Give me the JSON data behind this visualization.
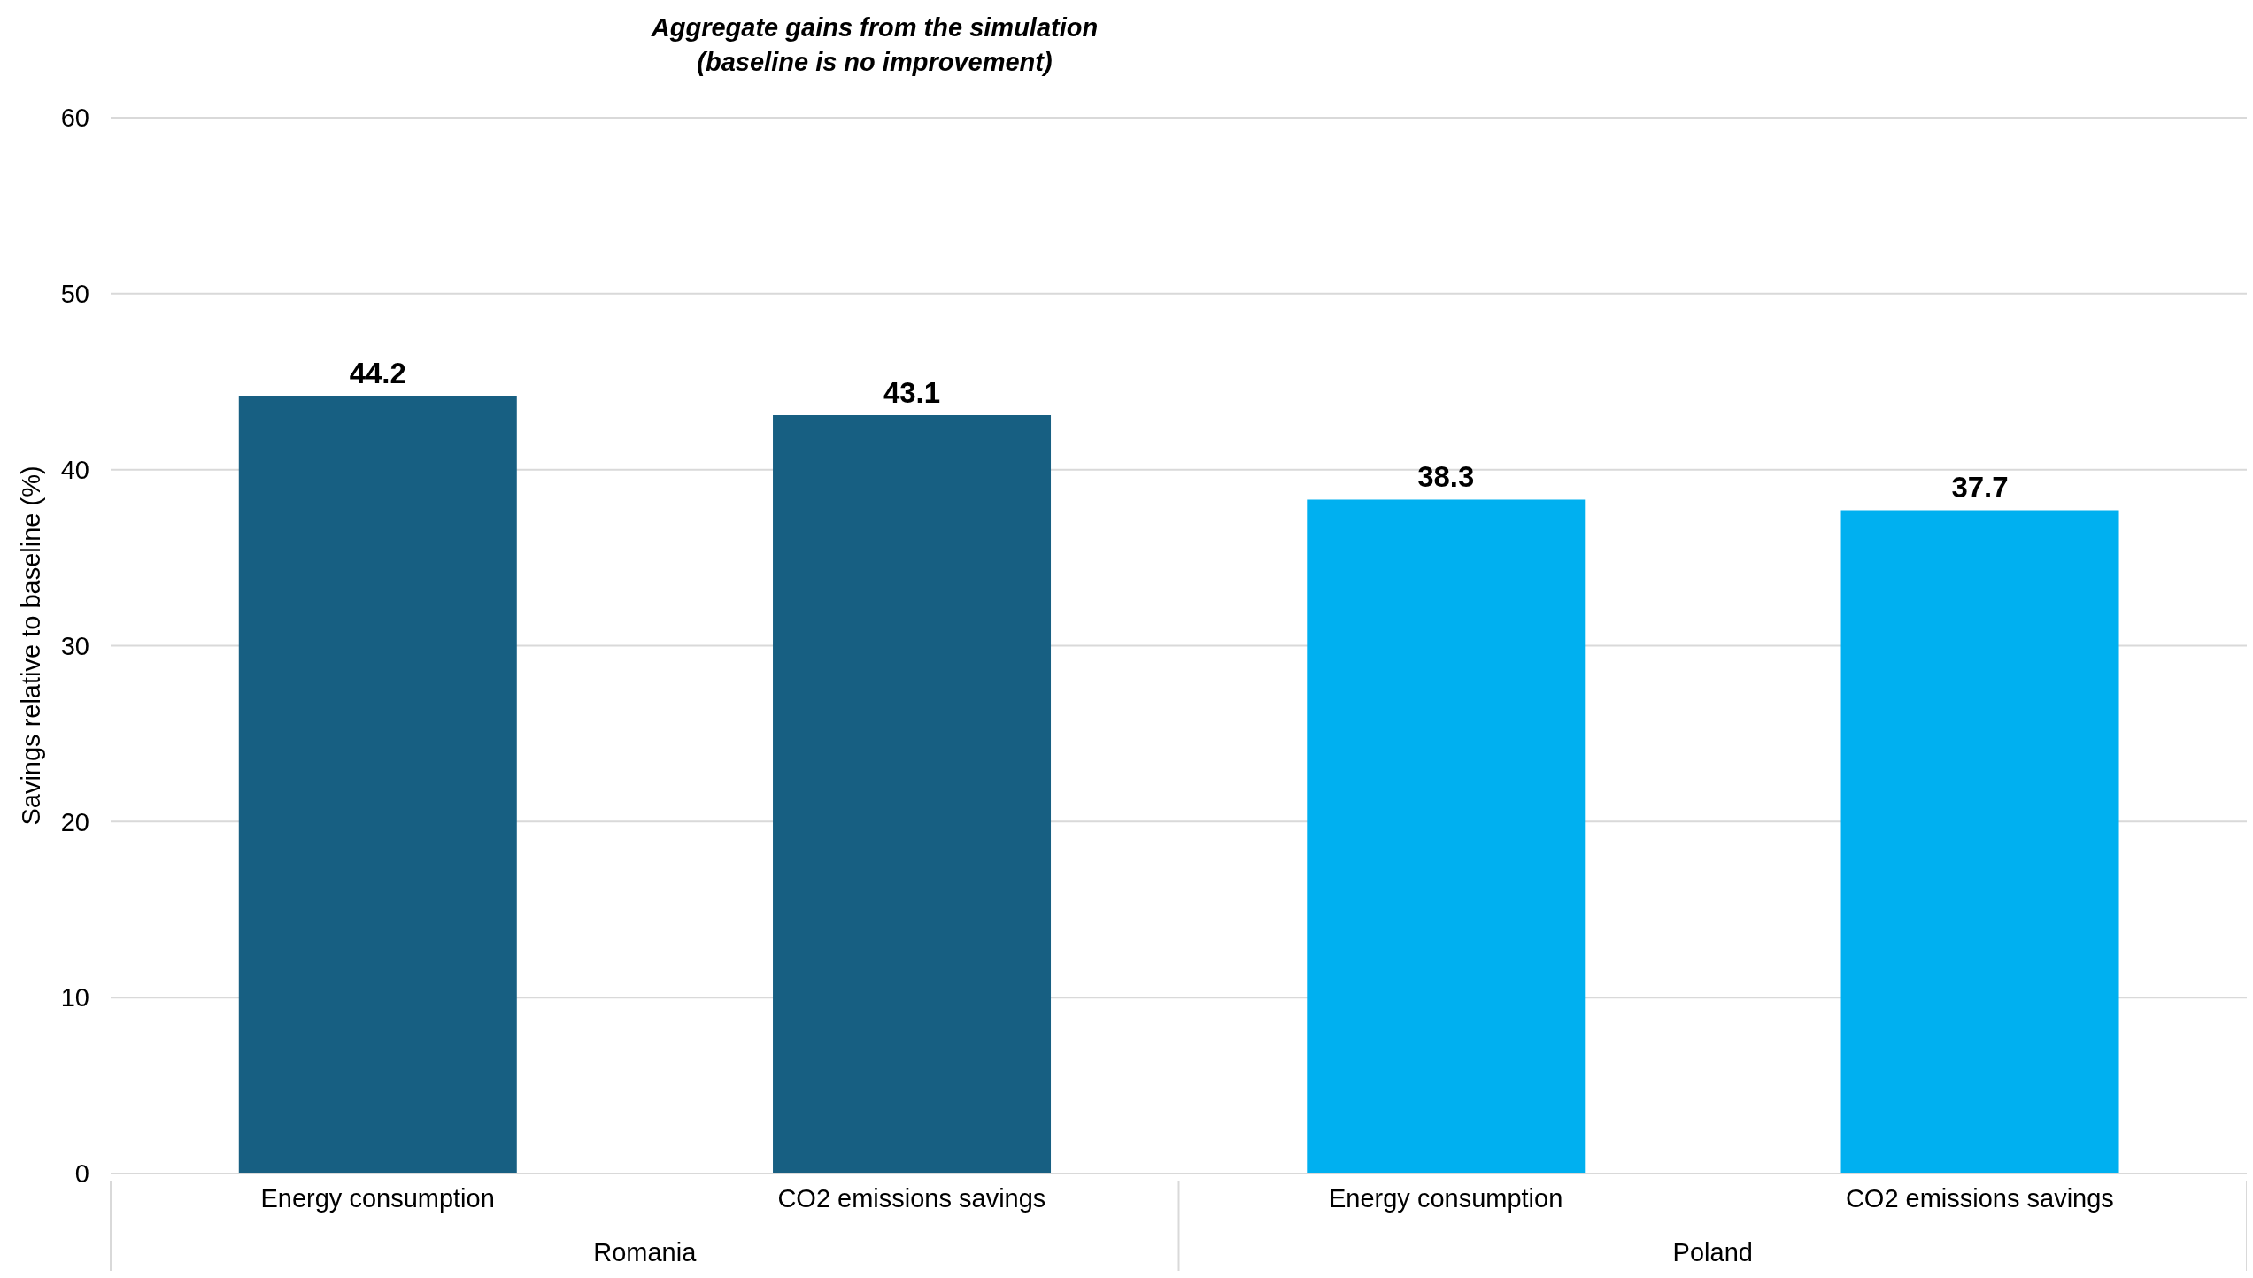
{
  "chart_data": {
    "type": "bar",
    "title": "Aggregate gains from the simulation\n(baseline is no improvement)",
    "ylabel": "Savings relative to baseline (%)",
    "categories": [
      "Energy consumption",
      "CO2 emissions savings",
      "Energy consumption",
      "CO2 emissions savings"
    ],
    "values": [
      44.2,
      43.1,
      38.3,
      37.7
    ],
    "colors": [
      "#175f82",
      "#175f82",
      "#00b0f0",
      "#00b0f0"
    ],
    "ylim": [
      0,
      60
    ],
    "yticks": [
      0,
      10,
      20,
      30,
      40,
      50,
      60
    ],
    "grid": "y",
    "data_labels": true,
    "annotations": [
      "Romania",
      "Poland"
    ]
  }
}
